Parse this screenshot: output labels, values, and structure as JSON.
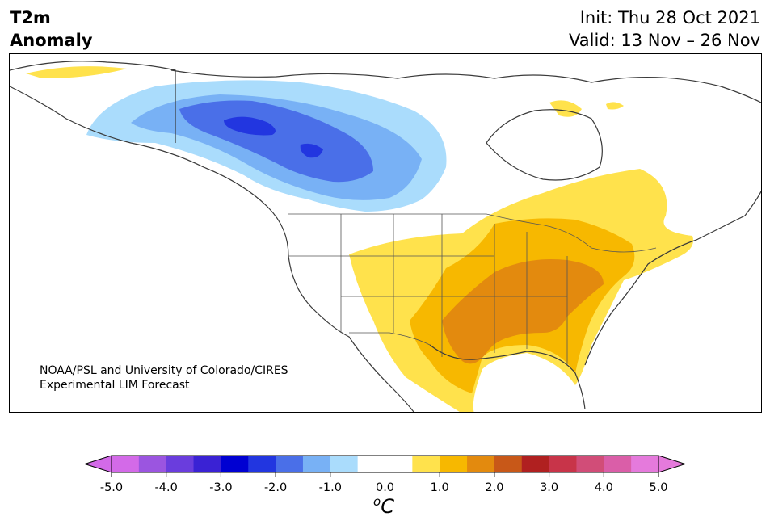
{
  "header": {
    "title_line1": "T2m",
    "title_line2": "Anomaly",
    "init": "Init: Thu 28 Oct 2021",
    "valid": "Valid: 13 Nov – 26 Nov"
  },
  "credit": {
    "line1": "NOAA/PSL and University of Colorado/CIRES",
    "line2": "Experimental LIM Forecast"
  },
  "colorbar": {
    "unit_base": "C",
    "unit_sup": "o",
    "tick_labels": [
      "-5.0",
      "-4.0",
      "-3.0",
      "-2.0",
      "-1.0",
      "0.0",
      "1.0",
      "2.0",
      "3.0",
      "4.0",
      "5.0"
    ],
    "colors": [
      "#d36ae8",
      "#9b55e0",
      "#6a3ddd",
      "#3a22d4",
      "#0000d2",
      "#2236e0",
      "#4a6fe8",
      "#78b1f5",
      "#aadcfc",
      "#ffffff",
      "#ffffff",
      "#ffe24c",
      "#f7b800",
      "#e38a0e",
      "#c85818",
      "#b02020",
      "#c83449",
      "#d14d78",
      "#da5ea8",
      "#e57adc"
    ],
    "under_color": "#d36ae8",
    "over_color": "#e57adc"
  },
  "anomaly_regions": [
    {
      "name": "warm-1.0",
      "color": "#ffe24c"
    },
    {
      "name": "warm-1.5",
      "color": "#f7b800"
    },
    {
      "name": "warm-2.0",
      "color": "#e38a0e"
    },
    {
      "name": "cold-0.5",
      "color": "#aadcfc"
    },
    {
      "name": "cold-1.0",
      "color": "#78b1f5"
    },
    {
      "name": "cold-1.5",
      "color": "#4a6fe8"
    },
    {
      "name": "cold-2.0",
      "color": "#2236e0"
    }
  ]
}
